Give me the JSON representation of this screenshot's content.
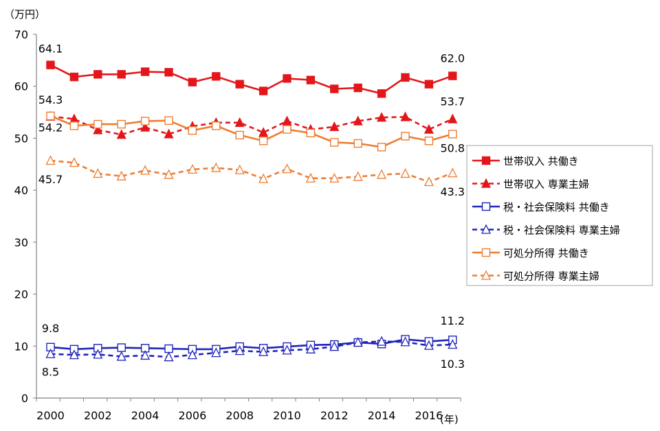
{
  "chart_data": {
    "type": "line",
    "y_unit": "（万円）",
    "x_unit": "(年)",
    "ylim": [
      0,
      70
    ],
    "yticks": [
      0,
      10,
      20,
      30,
      40,
      50,
      60,
      70
    ],
    "xlim": [
      2000,
      2017
    ],
    "x_tick_labels": [
      "2000",
      "2002",
      "2004",
      "2006",
      "2008",
      "2010",
      "2012",
      "2014",
      "2016"
    ],
    "x": [
      2000,
      2001,
      2002,
      2003,
      2004,
      2005,
      2006,
      2007,
      2008,
      2009,
      2010,
      2011,
      2012,
      2013,
      2014,
      2015,
      2016,
      2017
    ],
    "grid": false,
    "legend_position": "right",
    "series": [
      {
        "name": "世帯収入 共働き",
        "color": "#e3161b",
        "dash": false,
        "marker": "square-filled",
        "values": [
          64.1,
          61.8,
          62.3,
          62.3,
          62.8,
          62.7,
          60.8,
          61.9,
          60.4,
          59.1,
          61.5,
          61.2,
          59.5,
          59.7,
          58.6,
          61.7,
          60.4,
          62.0
        ]
      },
      {
        "name": "世帯収入 専業主婦",
        "color": "#e3161b",
        "dash": true,
        "marker": "triangle-filled",
        "values": [
          54.2,
          53.7,
          51.6,
          50.7,
          52.1,
          50.8,
          52.3,
          53.0,
          53.0,
          51.1,
          53.3,
          51.7,
          52.2,
          53.3,
          54.0,
          54.1,
          51.7,
          53.7
        ]
      },
      {
        "name": "税・社会保険料 共働き",
        "color": "#1f24b8",
        "dash": false,
        "marker": "square-open",
        "values": [
          9.8,
          9.4,
          9.6,
          9.7,
          9.6,
          9.5,
          9.4,
          9.4,
          9.9,
          9.6,
          9.9,
          10.2,
          10.3,
          10.7,
          10.4,
          11.3,
          10.9,
          11.2
        ]
      },
      {
        "name": "税・社会保険料 専業主婦",
        "color": "#1f24b8",
        "dash": true,
        "marker": "triangle-open",
        "values": [
          8.5,
          8.3,
          8.4,
          8.0,
          8.2,
          7.9,
          8.3,
          8.7,
          9.1,
          8.9,
          9.2,
          9.4,
          9.9,
          10.7,
          10.9,
          10.8,
          10.1,
          10.3
        ]
      },
      {
        "name": "可処分所得 共働き",
        "color": "#ed7d31",
        "dash": false,
        "marker": "square-open",
        "values": [
          54.3,
          52.4,
          52.7,
          52.7,
          53.3,
          53.4,
          51.5,
          52.4,
          50.6,
          49.5,
          51.7,
          51.0,
          49.2,
          49.0,
          48.3,
          50.4,
          49.5,
          50.8
        ]
      },
      {
        "name": "可処分所得 専業主婦",
        "color": "#ed7d31",
        "dash": true,
        "marker": "triangle-open",
        "values": [
          45.7,
          45.3,
          43.2,
          42.7,
          43.8,
          43.0,
          44.0,
          44.3,
          43.9,
          42.2,
          44.1,
          42.3,
          42.3,
          42.6,
          43.0,
          43.2,
          41.6,
          43.3
        ]
      }
    ],
    "data_labels": [
      {
        "text": "64.1"
      },
      {
        "text": "62.0"
      },
      {
        "text": "54.3"
      },
      {
        "text": "54.2"
      },
      {
        "text": "53.7"
      },
      {
        "text": "50.8"
      },
      {
        "text": "45.7"
      },
      {
        "text": "43.3"
      },
      {
        "text": "9.8"
      },
      {
        "text": "8.5"
      },
      {
        "text": "11.2"
      },
      {
        "text": "10.3"
      }
    ]
  }
}
